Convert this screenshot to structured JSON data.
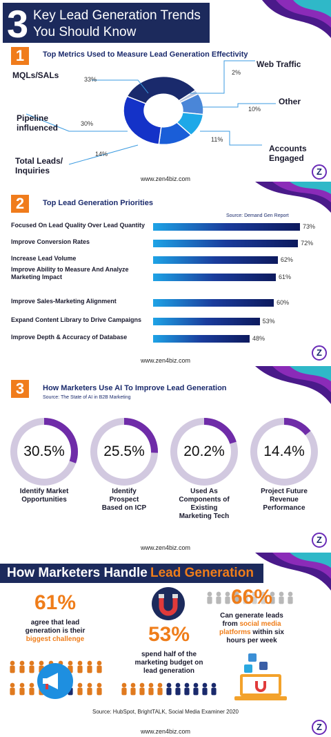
{
  "header": {
    "number": "3",
    "line1": "Key Lead Generation Trends",
    "line2": "You Should Know"
  },
  "section1": {
    "number": "1",
    "title": "Top Metrics Used to Measure Lead Generation Effectivity",
    "website": "www.zen4biz.com",
    "labels": {
      "mqls": "MQLs/SALs",
      "pipeline1": "Pipeline",
      "pipeline2": "influenced",
      "total1": "Total Leads/",
      "total2": "Inquiries",
      "web": "Web Traffic",
      "other": "Other",
      "accounts1": "Accounts",
      "accounts2": "Engaged"
    },
    "percents": {
      "mqls": "33%",
      "pipeline": "30%",
      "total": "14%",
      "web": "2%",
      "other": "10%",
      "accounts": "11%"
    }
  },
  "section2": {
    "number": "2",
    "title": "Top Lead Generation Priorities",
    "source": "Source: Demand Gen Report",
    "website": "www.zen4biz.com",
    "bars": [
      {
        "label": "Focused On Lead Quality Over Lead Quantity",
        "value": 73,
        "text": "73%"
      },
      {
        "label": "Improve Conversion Rates",
        "value": 72,
        "text": "72%"
      },
      {
        "label": "Increase Lead Volume",
        "value": 62,
        "text": "62%"
      },
      {
        "label": "Improve Ability to Measure And Analyze Marketing Impact",
        "value": 61,
        "text": "61%"
      },
      {
        "label": "Improve Sales-Marketing Alignment",
        "value": 60,
        "text": "60%"
      },
      {
        "label": "Expand Content Library to Drive Campaigns",
        "value": 53,
        "text": "53%"
      },
      {
        "label": "Improve Depth & Accuracy of Database",
        "value": 48,
        "text": "48%"
      }
    ]
  },
  "section3": {
    "number": "3",
    "title": "How Marketers Use AI To Improve Lead Generation",
    "source": "Source: The State of AI in B2B Marketing",
    "website": "www.zen4biz.com",
    "rings": [
      {
        "value": "30.5%",
        "fraction": 0.305,
        "l1": "Identify Market",
        "l2": "Opportunities",
        "l3": "",
        "l4": ""
      },
      {
        "value": "25.5%",
        "fraction": 0.255,
        "l1": "Identify",
        "l2": "Prospect",
        "l3": "Based on ICP",
        "l4": ""
      },
      {
        "value": "20.2%",
        "fraction": 0.202,
        "l1": "Used As",
        "l2": "Components of",
        "l3": "Existing",
        "l4": "Marketing Tech"
      },
      {
        "value": "14.4%",
        "fraction": 0.144,
        "l1": "Project Future",
        "l2": "Revenue",
        "l3": "Performance",
        "l4": ""
      }
    ]
  },
  "section4": {
    "title_white": "How Marketers Handle ",
    "title_orange": "Lead Generation",
    "stat1": {
      "value": "61%",
      "t1": "agree that lead",
      "t2": "generation is their",
      "t3": "biggest challenge"
    },
    "stat2": {
      "value": "53%",
      "t1": "spend half of the",
      "t2": "marketing budget on",
      "t3": "lead generation"
    },
    "stat3": {
      "value": "66%",
      "t1": "Can generate leads",
      "t2a": "from ",
      "t2b": "social media",
      "t3a": "platforms",
      "t3b": " within six",
      "t4": "hours per week"
    },
    "source": "Source: HubSpot, BrightTALK, Social Media Examiner 2020",
    "website": "www.zen4biz.com"
  },
  "colors": {
    "navy": "#1a2a6c",
    "orange": "#ef7d1a",
    "purple": "#6a2bb8",
    "ring_track": "#d2c9e0",
    "ring_fill": "#6f2ca8"
  }
}
